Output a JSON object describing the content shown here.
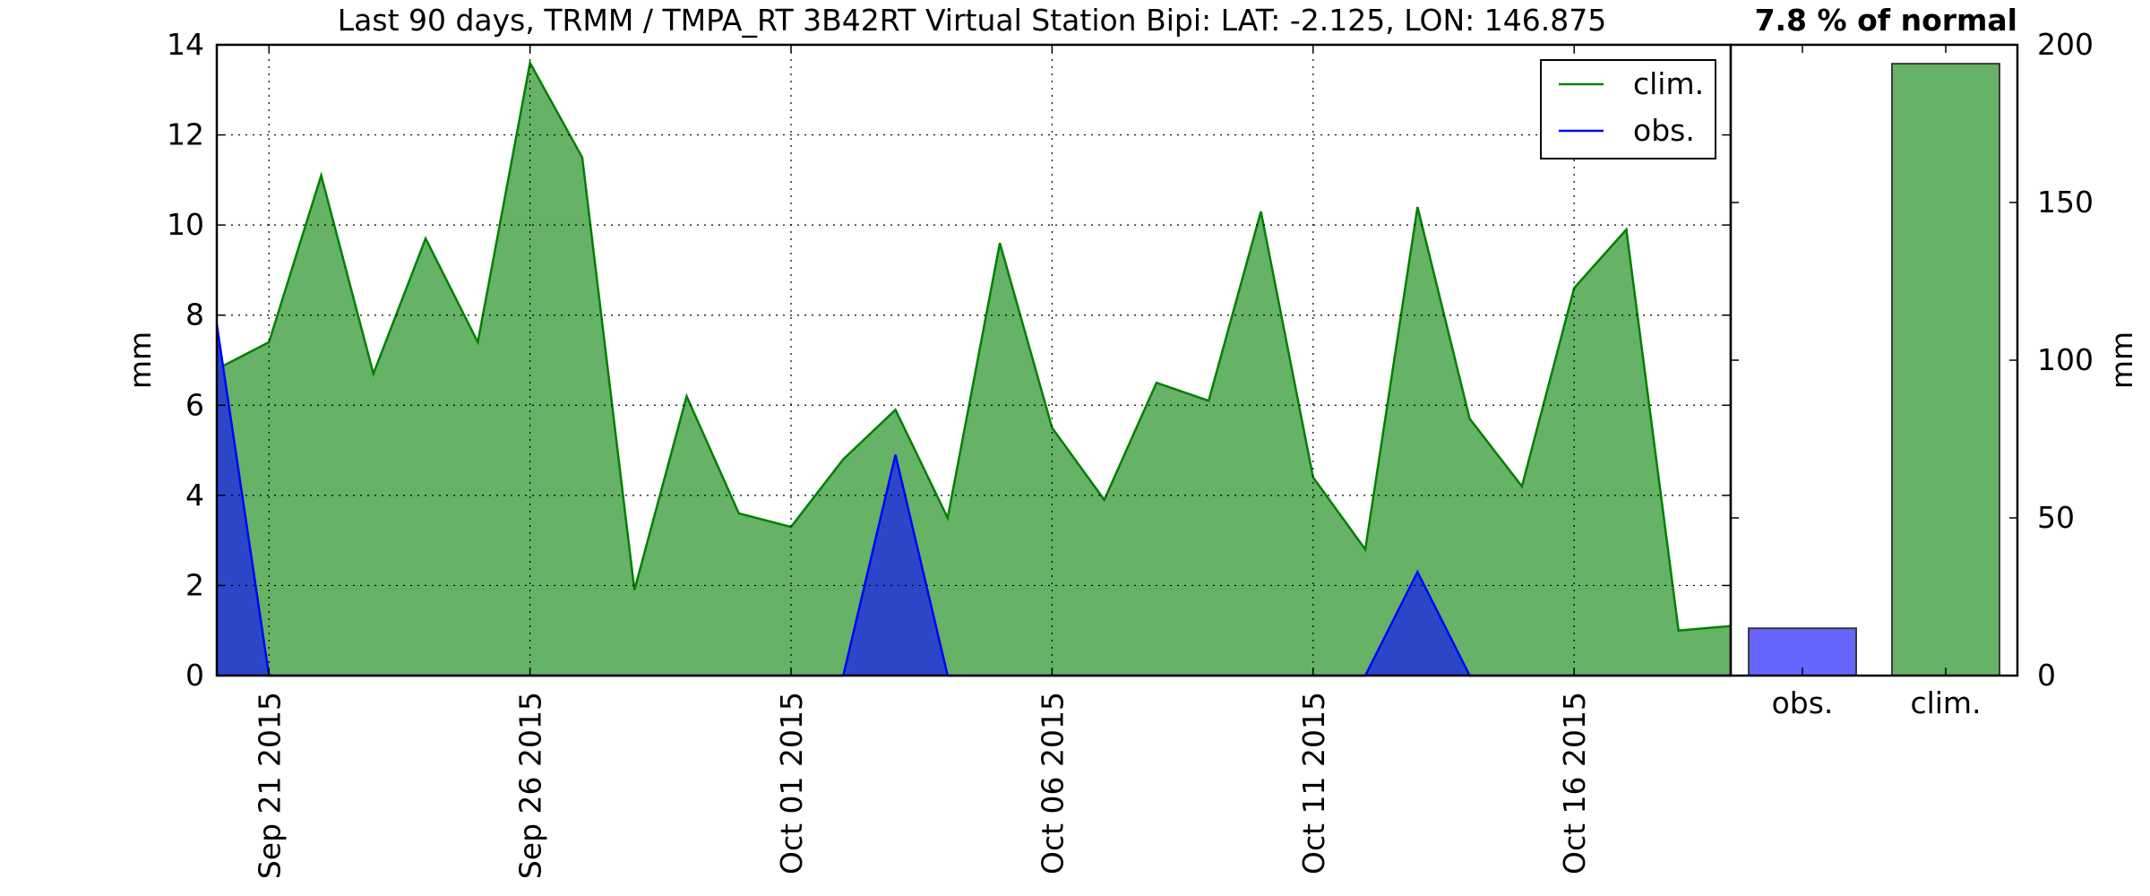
{
  "chart_data": [
    {
      "type": "area",
      "title": "Last 90 days, TRMM / TMPA_RT 3B42RT Virtual Station Bipi: LAT: -2.125, LON: 146.875",
      "xlabel": "",
      "ylabel": "mm",
      "ylim": [
        0,
        14
      ],
      "yticks": [
        "0",
        "2",
        "4",
        "6",
        "8",
        "10",
        "12",
        "14"
      ],
      "x_range": [
        "2015-09-20",
        "2015-10-19"
      ],
      "xticks": [
        {
          "date": "2015-09-21",
          "label": "Sep 21 2015"
        },
        {
          "date": "2015-09-26",
          "label": "Sep 26 2015"
        },
        {
          "date": "2015-10-01",
          "label": "Oct 01 2015"
        },
        {
          "date": "2015-10-06",
          "label": "Oct 06 2015"
        },
        {
          "date": "2015-10-11",
          "label": "Oct 11 2015"
        },
        {
          "date": "2015-10-16",
          "label": "Oct 16 2015"
        }
      ],
      "grid": true,
      "legend_position": "top-right",
      "x": [
        "2015-09-20",
        "2015-09-21",
        "2015-09-22",
        "2015-09-23",
        "2015-09-24",
        "2015-09-25",
        "2015-09-26",
        "2015-09-27",
        "2015-09-28",
        "2015-09-29",
        "2015-09-30",
        "2015-10-01",
        "2015-10-02",
        "2015-10-03",
        "2015-10-04",
        "2015-10-05",
        "2015-10-06",
        "2015-10-07",
        "2015-10-08",
        "2015-10-09",
        "2015-10-10",
        "2015-10-11",
        "2015-10-12",
        "2015-10-13",
        "2015-10-14",
        "2015-10-15",
        "2015-10-16",
        "2015-10-17",
        "2015-10-18",
        "2015-10-19"
      ],
      "series": [
        {
          "name": "clim.",
          "color": "#008000",
          "fill": "#66b266",
          "values": [
            6.8,
            7.4,
            11.1,
            6.7,
            9.7,
            7.4,
            13.6,
            11.5,
            1.9,
            6.2,
            3.6,
            3.3,
            4.8,
            5.9,
            3.5,
            9.6,
            5.5,
            3.9,
            6.5,
            6.1,
            10.3,
            4.4,
            2.8,
            10.4,
            5.7,
            4.2,
            8.6,
            9.9,
            1.0,
            1.1
          ]
        },
        {
          "name": "obs.",
          "color": "#0000ff",
          "fill": "#2b47c8",
          "values": [
            7.8,
            0,
            0,
            0,
            0,
            0,
            0,
            0,
            0,
            0,
            0,
            0,
            0,
            4.9,
            0,
            0,
            0,
            0,
            0,
            0,
            0,
            0,
            0,
            2.3,
            0,
            0,
            0,
            0,
            0,
            0
          ]
        }
      ]
    },
    {
      "type": "bar",
      "title": "7.8 % of normal",
      "xlabel": "",
      "ylabel": "mm",
      "ylim": [
        0,
        200
      ],
      "yticks": [
        "0",
        "50",
        "100",
        "150",
        "200"
      ],
      "categories": [
        "obs.",
        "clim."
      ],
      "values": [
        15,
        194
      ],
      "colors": [
        "#6666ff",
        "#66b266"
      ],
      "grid": false
    }
  ]
}
